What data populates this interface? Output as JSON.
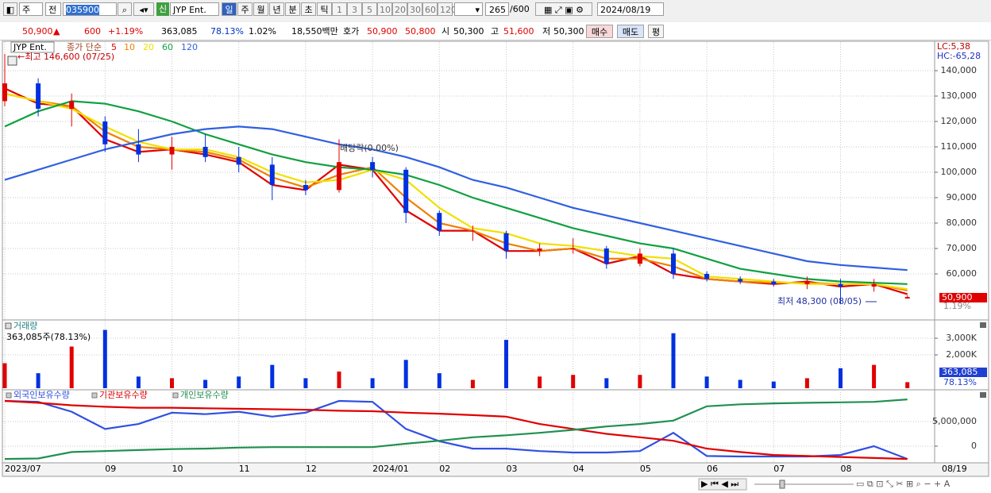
{
  "toolbar": {
    "period_select": "주",
    "prev": "전",
    "code": "035900",
    "new_badge": "신",
    "name": "JYP Ent.",
    "periods": [
      "일",
      "주",
      "월",
      "년",
      "분",
      "초",
      "틱"
    ],
    "intervals": [
      "1",
      "3",
      "5",
      "10",
      "20",
      "30",
      "60",
      "120"
    ],
    "count": "265",
    "count_max": "/600",
    "date": "2024/08/19"
  },
  "quote_bar": {
    "price": "50,900",
    "arrow": "▲",
    "change": "600",
    "change_pct": "+1.19%",
    "volume": "363,085",
    "volume_pct": "78.13%",
    "turnover": "1.02%",
    "amount": "18,550백만",
    "ask_label": "호가",
    "ask": "50,900",
    "bid": "50,800",
    "open_label": "시",
    "open": "50,300",
    "high_label": "고",
    "high": "51,600",
    "low_label": "저",
    "low": "50,300",
    "buy": "매수",
    "sell": "매도",
    "avg": "평"
  },
  "chart_data": [
    {
      "type": "candlestick",
      "name": "JYP Ent.",
      "legend_prefix": "종가 단순",
      "categories": [
        "2023/07",
        null,
        null,
        "09",
        null,
        "10",
        null,
        "11",
        null,
        "12",
        null,
        "2024/01",
        null,
        "02",
        null,
        "03",
        null,
        "04",
        null,
        "05",
        null,
        "06",
        null,
        "07",
        null,
        "08",
        null,
        null
      ],
      "open": [
        128000,
        135000,
        125000,
        120000,
        111000,
        107000,
        110000,
        106000,
        103000,
        95000,
        93000,
        104000,
        101000,
        84000,
        77000,
        76000,
        69000,
        70000,
        70000,
        64000,
        68000,
        60000,
        58000,
        57000,
        56000,
        56000,
        55000,
        50300
      ],
      "high": [
        146600,
        137000,
        131000,
        122000,
        117000,
        114000,
        115000,
        110000,
        106000,
        97000,
        113000,
        106000,
        102000,
        85000,
        79000,
        77000,
        72000,
        74000,
        71000,
        70000,
        70000,
        61000,
        59000,
        58000,
        59000,
        58000,
        58000,
        51600
      ],
      "low": [
        126000,
        122000,
        118000,
        108000,
        104000,
        101000,
        104000,
        100000,
        89000,
        91000,
        92000,
        98000,
        80000,
        75000,
        73000,
        66000,
        67000,
        68000,
        62000,
        63000,
        58000,
        57000,
        56000,
        55000,
        54000,
        48300,
        53000,
        50300
      ],
      "close": [
        135000,
        125000,
        128000,
        111000,
        107000,
        110000,
        106000,
        103000,
        95000,
        93000,
        104000,
        101000,
        84000,
        77000,
        77000,
        69000,
        70000,
        70000,
        64000,
        68000,
        60000,
        58000,
        57000,
        56000,
        57000,
        55000,
        56000,
        50900
      ],
      "up_color": "#e00000",
      "down_color": "#0030e0",
      "series": [
        {
          "name": "5",
          "color": "#e00000",
          "values": [
            133000,
            127000,
            126000,
            113000,
            108000,
            109000,
            107000,
            104000,
            95000,
            93000,
            103000,
            101000,
            85000,
            77000,
            77000,
            69000,
            69000,
            70000,
            64000,
            67000,
            60000,
            58000,
            57000,
            56000,
            57000,
            55000,
            56000,
            52000
          ]
        },
        {
          "name": "10",
          "color": "#f08000",
          "values": [
            131000,
            128000,
            126000,
            116000,
            110000,
            109000,
            108000,
            105000,
            98000,
            94000,
            99000,
            102000,
            90000,
            80000,
            77000,
            72000,
            69000,
            70000,
            66000,
            66000,
            63000,
            58000,
            57000,
            56500,
            56500,
            56000,
            56000,
            53500
          ]
        },
        {
          "name": "20",
          "color": "#f0e000",
          "values": [
            131000,
            128000,
            125000,
            118000,
            112000,
            109000,
            109000,
            106000,
            100000,
            96000,
            97000,
            101000,
            97000,
            86000,
            78000,
            76000,
            72000,
            71000,
            69000,
            67000,
            66000,
            59000,
            58000,
            57000,
            56000,
            56000,
            56000,
            54000
          ]
        },
        {
          "name": "60",
          "color": "#10a040",
          "values": [
            118000,
            124000,
            128000,
            127000,
            124000,
            120000,
            115000,
            111000,
            107000,
            104000,
            102000,
            101000,
            99000,
            95000,
            90000,
            86000,
            82000,
            78000,
            75000,
            72000,
            70000,
            66000,
            62000,
            60000,
            58000,
            57000,
            56500,
            56000
          ]
        },
        {
          "name": "120",
          "color": "#3060e0",
          "values": [
            97000,
            101000,
            105000,
            109000,
            112000,
            115000,
            117000,
            118000,
            117000,
            114000,
            111000,
            109000,
            106000,
            102000,
            97000,
            94000,
            90000,
            86000,
            83000,
            80000,
            77000,
            74000,
            71000,
            68000,
            65000,
            63500,
            62500,
            61500
          ]
        }
      ],
      "ylim": [
        41875,
        151250
      ],
      "yticks": [
        {
          "value": 60000,
          "label": "60,000"
        },
        {
          "value": 70000,
          "label": "70,000"
        },
        {
          "value": 80000,
          "label": "80,000"
        },
        {
          "value": 90000,
          "label": "90,000"
        },
        {
          "value": 100000,
          "label": "100,000"
        },
        {
          "value": 110000,
          "label": "110,000"
        },
        {
          "value": 120000,
          "label": "120,000"
        },
        {
          "value": 130000,
          "label": "130,000"
        },
        {
          "value": 140000,
          "label": "140,000"
        }
      ],
      "annotations": {
        "high": "←최고 146,600 (07/25)",
        "dividend": "배당락(0.00%)",
        "low": "최저 48,300 (08/05)",
        "lc": "LC:5,38",
        "hc": "HC:-65,28",
        "last_price": "50,900",
        "last_change": "1.19%"
      },
      "x_end_label": "08/19"
    },
    {
      "type": "bar",
      "title": "거래량",
      "annotation": "363,085주(78.13%)",
      "last_value": "363,085",
      "last_pct": "78.13%",
      "values": [
        1500,
        900,
        2500,
        3500,
        700,
        600,
        500,
        700,
        1400,
        600,
        1000,
        600,
        1700,
        900,
        500,
        2900,
        700,
        800,
        600,
        800,
        3300,
        700,
        500,
        400,
        600,
        1200,
        1400,
        363
      ],
      "ylim": [
        0,
        4050
      ],
      "yticks": [
        {
          "value": 2000,
          "label": "2,000K"
        },
        {
          "value": 3000,
          "label": "3,000K"
        }
      ]
    },
    {
      "type": "line",
      "series": [
        {
          "name": "외국인보유수량",
          "color": "#3050e0",
          "values": [
            9200000,
            9000000,
            7000000,
            3500000,
            4500000,
            6800000,
            6500000,
            7000000,
            6000000,
            6800000,
            9200000,
            9000000,
            3500000,
            1000000,
            -500000,
            -500000,
            -1000000,
            -1300000,
            -1300000,
            -1000000,
            2700000,
            -2000000,
            -2100000,
            -2100000,
            -2100000,
            -1800000,
            0,
            -2600000
          ]
        },
        {
          "name": "기관보유수량",
          "color": "#e00000",
          "values": [
            9200000,
            8800000,
            8300000,
            8000000,
            7800000,
            7800000,
            7700000,
            7600000,
            7500000,
            7400000,
            7200000,
            7100000,
            6800000,
            6600000,
            6300000,
            6000000,
            4500000,
            3500000,
            2500000,
            1800000,
            1100000,
            -500000,
            -1200000,
            -1800000,
            -2000000,
            -2200000,
            -2400000,
            -2600000
          ]
        },
        {
          "name": "개인보유수량",
          "color": "#209050",
          "values": [
            -2600000,
            -2500000,
            -1200000,
            -1000000,
            -800000,
            -600000,
            -500000,
            -300000,
            -200000,
            -200000,
            -200000,
            -200000,
            500000,
            1100000,
            1800000,
            2200000,
            2700000,
            3300000,
            4000000,
            4500000,
            5200000,
            8100000,
            8500000,
            8700000,
            8800000,
            8900000,
            9000000,
            9500000
          ]
        }
      ],
      "ylim": [
        -3390000,
        11290000
      ],
      "yticks": [
        0,
        {
          "value": 5000000,
          "label": "5,000,000"
        }
      ]
    }
  ]
}
